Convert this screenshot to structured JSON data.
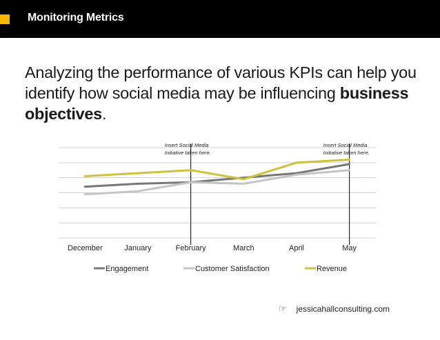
{
  "header": {
    "title": "Monitoring Metrics"
  },
  "headline": {
    "prefix": "Analyzing the performance of various KPIs can help you identify how social media may be influencing ",
    "emphasis": "business objectives",
    "suffix": "."
  },
  "footer": {
    "icon": "pointing-hand-icon",
    "text": "jessicahallconsulting.com"
  },
  "colors": {
    "accent": "#f5b800",
    "bar": "#000000"
  },
  "chart_data": {
    "type": "line",
    "categories": [
      "December",
      "January",
      "February",
      "March",
      "April",
      "May"
    ],
    "ylim": [
      0,
      6
    ],
    "grid": true,
    "legend_position": "bottom",
    "series": [
      {
        "name": "Engagement",
        "color": "#777777",
        "values": [
          3.4,
          3.6,
          3.7,
          4.0,
          4.3,
          4.9
        ]
      },
      {
        "name": "Customer Satisfaction",
        "color": "#c4c4c4",
        "values": [
          2.9,
          3.1,
          3.7,
          3.6,
          4.2,
          4.5
        ]
      },
      {
        "name": "Revenue",
        "color": "#cfc23a",
        "values": [
          4.1,
          4.3,
          4.5,
          3.9,
          5.0,
          5.2
        ]
      }
    ],
    "annotations": [
      {
        "category": "February",
        "line1": "Insert Social Media",
        "line2": "Initiative taken here."
      },
      {
        "category": "May",
        "line1": "Insert Social Media",
        "line2": "Initiative taken here."
      }
    ]
  }
}
